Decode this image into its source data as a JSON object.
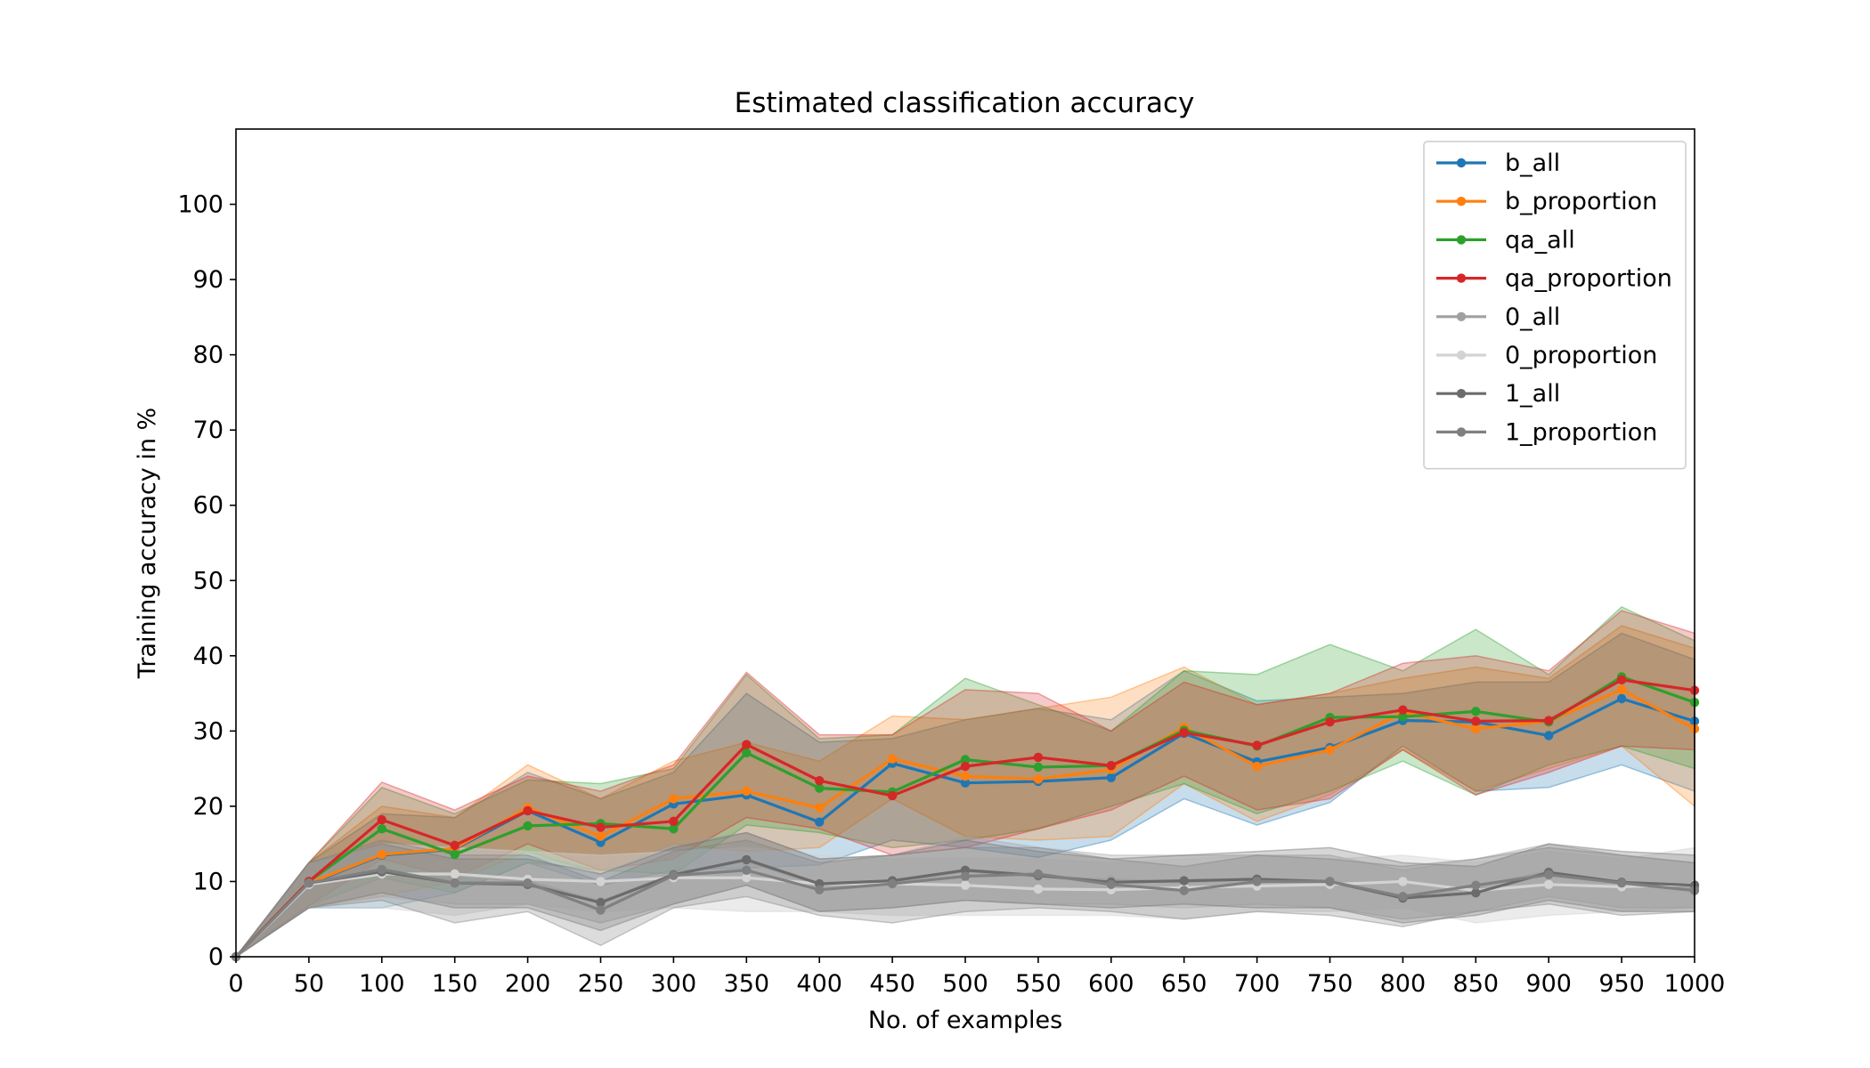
{
  "chart_data": {
    "type": "line",
    "title": "Estimated classification accuracy",
    "xlabel": "No. of examples",
    "ylabel": "Training accuracy in %",
    "xlim": [
      0,
      1000
    ],
    "ylim": [
      0,
      110
    ],
    "xticks": [
      0,
      50,
      100,
      150,
      200,
      250,
      300,
      350,
      400,
      450,
      500,
      550,
      600,
      650,
      700,
      750,
      800,
      850,
      900,
      950,
      1000
    ],
    "yticks": [
      0,
      10,
      20,
      30,
      40,
      50,
      60,
      70,
      80,
      90,
      100
    ],
    "grid": false,
    "legend_position": "top-right",
    "x": [
      0,
      50,
      100,
      150,
      200,
      250,
      300,
      350,
      400,
      450,
      500,
      550,
      600,
      650,
      700,
      750,
      800,
      850,
      900,
      950,
      1000
    ],
    "series": [
      {
        "name": "b_all",
        "color": "#1f77b4",
        "band_alpha": 0.25,
        "values": [
          0,
          9.7,
          13.5,
          14.3,
          19.4,
          15.2,
          20.3,
          21.5,
          17.9,
          25.7,
          23.1,
          23.3,
          23.8,
          29.7,
          25.9,
          27.8,
          31.4,
          31.2,
          29.4,
          34.3,
          31.3
        ],
        "lower": [
          0,
          6.5,
          6.5,
          8.5,
          12.5,
          9.5,
          11.5,
          11.8,
          12.2,
          15.5,
          14.5,
          13.2,
          15.5,
          21.0,
          17.5,
          20.5,
          28.0,
          22.0,
          22.5,
          25.5,
          22.0
        ],
        "upper": [
          0,
          12.5,
          19.0,
          18.5,
          24.5,
          21.0,
          24.5,
          35.0,
          28.5,
          29.0,
          31.5,
          33.0,
          31.5,
          38.0,
          34.0,
          34.5,
          35.0,
          36.5,
          36.5,
          43.0,
          39.5
        ]
      },
      {
        "name": "b_proportion",
        "color": "#ff7f0e",
        "band_alpha": 0.25,
        "values": [
          0,
          9.8,
          13.6,
          14.4,
          19.8,
          16.0,
          21.0,
          22.0,
          19.8,
          26.3,
          24.0,
          23.6,
          24.9,
          30.5,
          25.3,
          27.5,
          32.5,
          30.3,
          31.3,
          35.5,
          30.3
        ],
        "lower": [
          0,
          6.8,
          8.0,
          10.0,
          14.0,
          11.0,
          15.0,
          14.0,
          14.5,
          21.0,
          16.0,
          15.5,
          16.0,
          23.0,
          18.0,
          21.5,
          27.5,
          22.0,
          25.0,
          28.0,
          20.0
        ],
        "upper": [
          0,
          12.5,
          20.0,
          18.5,
          25.5,
          21.0,
          26.0,
          28.5,
          26.0,
          32.0,
          31.5,
          33.0,
          34.5,
          38.5,
          33.5,
          35.0,
          37.0,
          38.5,
          37.0,
          44.0,
          41.0
        ]
      },
      {
        "name": "qa_all",
        "color": "#2ca02c",
        "band_alpha": 0.25,
        "values": [
          0,
          10.0,
          17.0,
          13.6,
          17.4,
          17.7,
          17.0,
          27.1,
          22.4,
          21.9,
          26.2,
          25.2,
          25.4,
          30.1,
          28.0,
          31.8,
          31.9,
          32.6,
          31.2,
          37.2,
          33.8
        ],
        "lower": [
          0,
          6.8,
          10.5,
          8.5,
          12.5,
          11.5,
          11.0,
          17.5,
          16.5,
          14.5,
          15.5,
          17.0,
          20.0,
          23.0,
          19.0,
          22.0,
          26.0,
          21.5,
          25.5,
          28.0,
          25.0
        ],
        "upper": [
          0,
          12.5,
          22.5,
          19.0,
          23.5,
          23.0,
          25.0,
          37.5,
          29.0,
          29.5,
          37.0,
          33.5,
          30.0,
          38.0,
          37.5,
          41.5,
          38.0,
          43.5,
          37.5,
          46.5,
          42.0
        ]
      },
      {
        "name": "qa_proportion",
        "color": "#d62728",
        "band_alpha": 0.25,
        "values": [
          0,
          10.0,
          18.2,
          14.8,
          19.4,
          17.2,
          18.0,
          28.2,
          23.4,
          21.4,
          25.3,
          26.5,
          25.4,
          29.8,
          28.1,
          31.2,
          32.8,
          31.3,
          31.4,
          36.8,
          35.4
        ],
        "lower": [
          0,
          6.8,
          13.0,
          10.5,
          15.0,
          11.5,
          13.0,
          18.5,
          17.0,
          13.5,
          14.5,
          17.0,
          19.5,
          24.0,
          19.5,
          21.0,
          27.5,
          21.5,
          24.5,
          28.0,
          27.5
        ],
        "upper": [
          0,
          12.5,
          23.2,
          19.5,
          24.0,
          22.0,
          25.5,
          37.8,
          29.5,
          29.5,
          35.5,
          35.0,
          30.0,
          36.5,
          33.5,
          35.0,
          39.0,
          40.0,
          38.0,
          46.0,
          43.0
        ]
      },
      {
        "name": "0_all",
        "color": "#a0a0a0",
        "band_alpha": 0.3,
        "values": [
          0,
          9.5,
          11.2,
          10.8,
          10.0,
          7.3,
          11.0,
          12.7,
          9.6,
          9.9,
          11.4,
          10.7,
          10.2,
          9.9,
          10.4,
          9.9,
          8.0,
          9.3,
          11.3,
          9.8,
          9.2
        ],
        "lower": [
          0,
          6.5,
          8.0,
          7.0,
          7.0,
          4.5,
          7.0,
          9.5,
          6.0,
          6.5,
          7.5,
          7.0,
          7.0,
          6.5,
          7.0,
          6.5,
          5.0,
          6.0,
          8.0,
          6.5,
          6.5
        ],
        "upper": [
          0,
          12.5,
          14.5,
          14.5,
          13.5,
          11.5,
          15.0,
          16.5,
          13.0,
          13.5,
          16.0,
          14.5,
          13.5,
          13.5,
          13.5,
          13.5,
          11.5,
          13.0,
          15.0,
          13.5,
          12.5
        ]
      },
      {
        "name": "0_proportion",
        "color": "#d3d3d3",
        "band_alpha": 0.45,
        "values": [
          0,
          9.6,
          11.0,
          11.0,
          10.3,
          10.0,
          10.5,
          10.5,
          9.7,
          9.7,
          9.5,
          9.0,
          8.9,
          9.2,
          9.4,
          9.6,
          10.0,
          8.8,
          9.6,
          9.3,
          9.6
        ],
        "lower": [
          0,
          6.5,
          6.5,
          5.5,
          7.0,
          6.0,
          6.5,
          6.0,
          6.0,
          5.5,
          5.5,
          5.5,
          5.5,
          5.0,
          6.0,
          6.0,
          6.5,
          4.5,
          5.5,
          6.0,
          6.5
        ],
        "upper": [
          0,
          12.5,
          15.0,
          14.5,
          14.0,
          13.5,
          14.0,
          14.5,
          13.5,
          13.0,
          13.0,
          13.0,
          12.5,
          13.0,
          13.5,
          13.0,
          13.5,
          12.5,
          14.0,
          13.0,
          14.5
        ]
      },
      {
        "name": "1_all",
        "color": "#6b6b6b",
        "band_alpha": 0.28,
        "values": [
          0,
          9.8,
          11.3,
          9.8,
          9.6,
          7.2,
          10.9,
          12.9,
          9.7,
          10.1,
          11.5,
          10.8,
          9.9,
          10.1,
          10.3,
          10.0,
          7.8,
          8.5,
          11.2,
          9.9,
          9.5
        ],
        "lower": [
          0,
          6.5,
          8.5,
          6.5,
          6.5,
          3.5,
          7.0,
          9.5,
          6.0,
          6.5,
          7.5,
          7.0,
          6.5,
          7.0,
          6.5,
          6.5,
          4.5,
          5.5,
          7.5,
          6.0,
          6.0
        ],
        "upper": [
          0,
          12.5,
          15.0,
          13.0,
          13.0,
          11.0,
          14.5,
          16.5,
          13.0,
          13.5,
          15.5,
          14.0,
          13.0,
          13.5,
          14.0,
          14.5,
          12.5,
          12.0,
          15.0,
          14.0,
          13.5
        ]
      },
      {
        "name": "1_proportion",
        "color": "#808080",
        "band_alpha": 0.28,
        "values": [
          0,
          9.8,
          11.6,
          9.8,
          9.8,
          6.2,
          10.8,
          11.5,
          8.9,
          9.7,
          10.7,
          11.0,
          9.6,
          8.8,
          10.0,
          10.0,
          8.0,
          9.5,
          10.9,
          9.8,
          8.8
        ],
        "lower": [
          0,
          6.5,
          7.5,
          4.5,
          6.0,
          1.5,
          6.5,
          8.0,
          5.5,
          4.5,
          6.0,
          6.5,
          6.0,
          5.0,
          6.0,
          5.5,
          4.0,
          6.0,
          7.0,
          5.5,
          6.0
        ],
        "upper": [
          0,
          12.5,
          15.5,
          13.5,
          13.5,
          10.0,
          14.0,
          15.5,
          12.5,
          13.5,
          14.5,
          14.5,
          13.0,
          12.0,
          13.5,
          13.0,
          12.0,
          13.0,
          14.5,
          13.5,
          12.5
        ]
      }
    ]
  }
}
